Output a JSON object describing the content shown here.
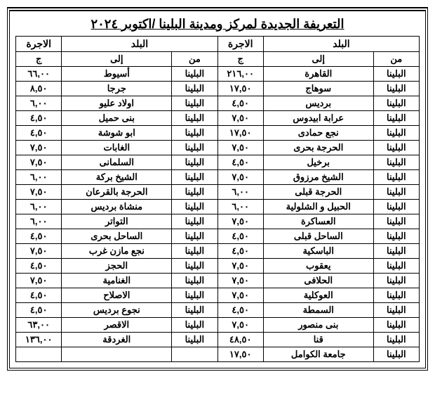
{
  "title": "التعريفة الجديدة لمركز ومدينة البلينا /اكتوبر ٢٠٢٤",
  "headers": {
    "country": "البلد",
    "fare": "الاجرة",
    "from": "من",
    "to": "إلى",
    "currency": "ج"
  },
  "rows": [
    {
      "r_from": "البلينا",
      "r_to": "القاهرة",
      "r_fare": "٢١٦,٠٠",
      "l_from": "البلينا",
      "l_to": "أسيوط",
      "l_fare": "٦٦,٠٠"
    },
    {
      "r_from": "البلينا",
      "r_to": "سوهاج",
      "r_fare": "١٧,٥٠",
      "l_from": "البلينا",
      "l_to": "جرجا",
      "l_fare": "٨,٥٠"
    },
    {
      "r_from": "البلينا",
      "r_to": "برديس",
      "r_fare": "٤,٥٠",
      "l_from": "البلينا",
      "l_to": "اولاد عليو",
      "l_fare": "٦,٠٠"
    },
    {
      "r_from": "البلينا",
      "r_to": "عرابة ابيدوس",
      "r_fare": "٧,٥٠",
      "l_from": "البلينا",
      "l_to": "بنى حميل",
      "l_fare": "٤,٥٠"
    },
    {
      "r_from": "البلينا",
      "r_to": "نجع حمادى",
      "r_fare": "١٧,٥٠",
      "l_from": "البلينا",
      "l_to": "ابو شوشة",
      "l_fare": "٤,٥٠"
    },
    {
      "r_from": "البلينا",
      "r_to": "الحرجة بحرى",
      "r_fare": "٧,٥٠",
      "l_from": "البلينا",
      "l_to": "الغابات",
      "l_fare": "٧,٥٠"
    },
    {
      "r_from": "البلينا",
      "r_to": "برخيل",
      "r_fare": "٤,٥٠",
      "l_from": "البلينا",
      "l_to": "السلمانى",
      "l_fare": "٧,٥٠"
    },
    {
      "r_from": "البلينا",
      "r_to": "الشيخ مرزوق",
      "r_fare": "٧,٥٠",
      "l_from": "البلينا",
      "l_to": "الشيخ بركة",
      "l_fare": "٦,٠٠"
    },
    {
      "r_from": "البلينا",
      "r_to": "الحرجة قبلى",
      "r_fare": "٦,٠٠",
      "l_from": "البلينا",
      "l_to": "الحرجة بالقرعان",
      "l_fare": "٧,٥٠"
    },
    {
      "r_from": "البلينا",
      "r_to": "الحبيل و الشلولية",
      "r_fare": "٦,٠٠",
      "l_from": "البلينا",
      "l_to": "منشاة برديس",
      "l_fare": "٦,٠٠"
    },
    {
      "r_from": "البلينا",
      "r_to": "العساكرة",
      "r_fare": "٧,٥٠",
      "l_from": "البلينا",
      "l_to": "التواتر",
      "l_fare": "٦,٠٠"
    },
    {
      "r_from": "البلينا",
      "r_to": "الساحل قبلى",
      "r_fare": "٤,٥٠",
      "l_from": "البلينا",
      "l_to": "الساحل بحرى",
      "l_fare": "٤,٥٠"
    },
    {
      "r_from": "البلينا",
      "r_to": "الباسكية",
      "r_fare": "٤,٥٠",
      "l_from": "البلينا",
      "l_to": "نجع مازن غرب",
      "l_fare": "٧,٥٠"
    },
    {
      "r_from": "البلينا",
      "r_to": "يعقوب",
      "r_fare": "٧,٥٠",
      "l_from": "البلينا",
      "l_to": "الحجز",
      "l_fare": "٤,٥٠"
    },
    {
      "r_from": "البلينا",
      "r_to": "الحلافى",
      "r_fare": "٧,٥٠",
      "l_from": "البلينا",
      "l_to": "الغنامية",
      "l_fare": "٧,٥٠"
    },
    {
      "r_from": "البلينا",
      "r_to": "العوكلية",
      "r_fare": "٧,٥٠",
      "l_from": "البلينا",
      "l_to": "الاصلاح",
      "l_fare": "٤,٥٠"
    },
    {
      "r_from": "البلينا",
      "r_to": "السمطة",
      "r_fare": "٤,٥٠",
      "l_from": "البلينا",
      "l_to": "نجوع برديس",
      "l_fare": "٤,٥٠"
    },
    {
      "r_from": "البلينا",
      "r_to": "بنى منصور",
      "r_fare": "٧,٥٠",
      "l_from": "البلينا",
      "l_to": "الاقصر",
      "l_fare": "٦٣,٠٠"
    },
    {
      "r_from": "البلينا",
      "r_to": "قنا",
      "r_fare": "٤٨,٥٠",
      "l_from": "البلينا",
      "l_to": "الغردقة",
      "l_fare": "١٣٦,٠٠"
    },
    {
      "r_from": "البلينا",
      "r_to": "جامعة الكوامل",
      "r_fare": "١٧,٥٠",
      "l_from": "",
      "l_to": "",
      "l_fare": ""
    }
  ]
}
